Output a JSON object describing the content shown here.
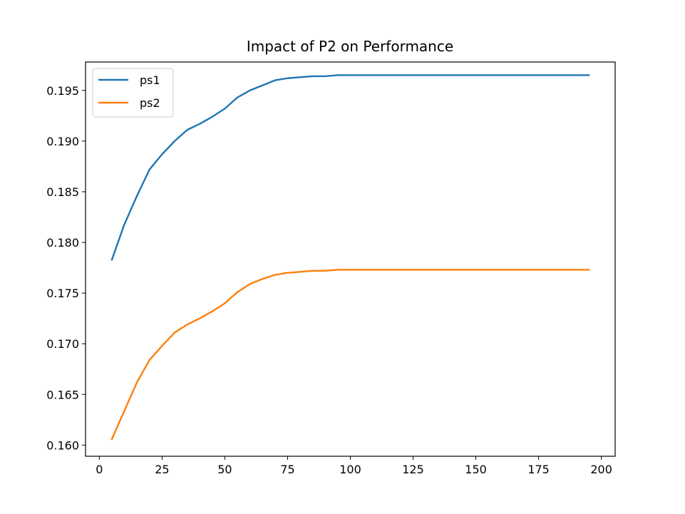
{
  "chart_data": {
    "type": "line",
    "title": "Impact of P2 on Performance",
    "xlabel": "",
    "ylabel": "",
    "xlim": [
      -5.5,
      205.5
    ],
    "ylim": [
      0.1589,
      0.1978
    ],
    "xticks": [
      0,
      25,
      50,
      75,
      100,
      125,
      150,
      175,
      200
    ],
    "yticks": [
      0.16,
      0.165,
      0.17,
      0.175,
      0.18,
      0.185,
      0.19,
      0.195
    ],
    "ytick_labels": [
      "0.160",
      "0.165",
      "0.170",
      "0.175",
      "0.180",
      "0.185",
      "0.190",
      "0.195"
    ],
    "grid": false,
    "legend_position": "upper-left",
    "x": [
      5,
      10,
      15,
      20,
      25,
      30,
      35,
      40,
      45,
      50,
      55,
      60,
      65,
      70,
      75,
      80,
      85,
      90,
      95,
      100,
      105,
      110,
      115,
      120,
      125,
      130,
      135,
      140,
      145,
      150,
      155,
      160,
      165,
      170,
      175,
      180,
      185,
      190,
      195
    ],
    "series": [
      {
        "name": "ps1",
        "color": "#1f77b4",
        "values": [
          0.1783,
          0.1818,
          0.1846,
          0.1872,
          0.1887,
          0.19,
          0.1911,
          0.1917,
          0.1924,
          0.1932,
          0.1943,
          0.195,
          0.1955,
          0.196,
          0.1962,
          0.1963,
          0.1964,
          0.1964,
          0.1965,
          0.1965,
          0.1965,
          0.1965,
          0.1965,
          0.1965,
          0.1965,
          0.1965,
          0.1965,
          0.1965,
          0.1965,
          0.1965,
          0.1965,
          0.1965,
          0.1965,
          0.1965,
          0.1965,
          0.1965,
          0.1965,
          0.1965,
          0.1965
        ]
      },
      {
        "name": "ps2",
        "color": "#ff7f0e",
        "values": [
          0.1606,
          0.1634,
          0.1662,
          0.1684,
          0.1698,
          0.1711,
          0.1719,
          0.1725,
          0.1732,
          0.174,
          0.1751,
          0.1759,
          0.1764,
          0.1768,
          0.177,
          0.1771,
          0.1772,
          0.1772,
          0.1773,
          0.1773,
          0.1773,
          0.1773,
          0.1773,
          0.1773,
          0.1773,
          0.1773,
          0.1773,
          0.1773,
          0.1773,
          0.1773,
          0.1773,
          0.1773,
          0.1773,
          0.1773,
          0.1773,
          0.1773,
          0.1773,
          0.1773,
          0.1773
        ]
      }
    ]
  }
}
